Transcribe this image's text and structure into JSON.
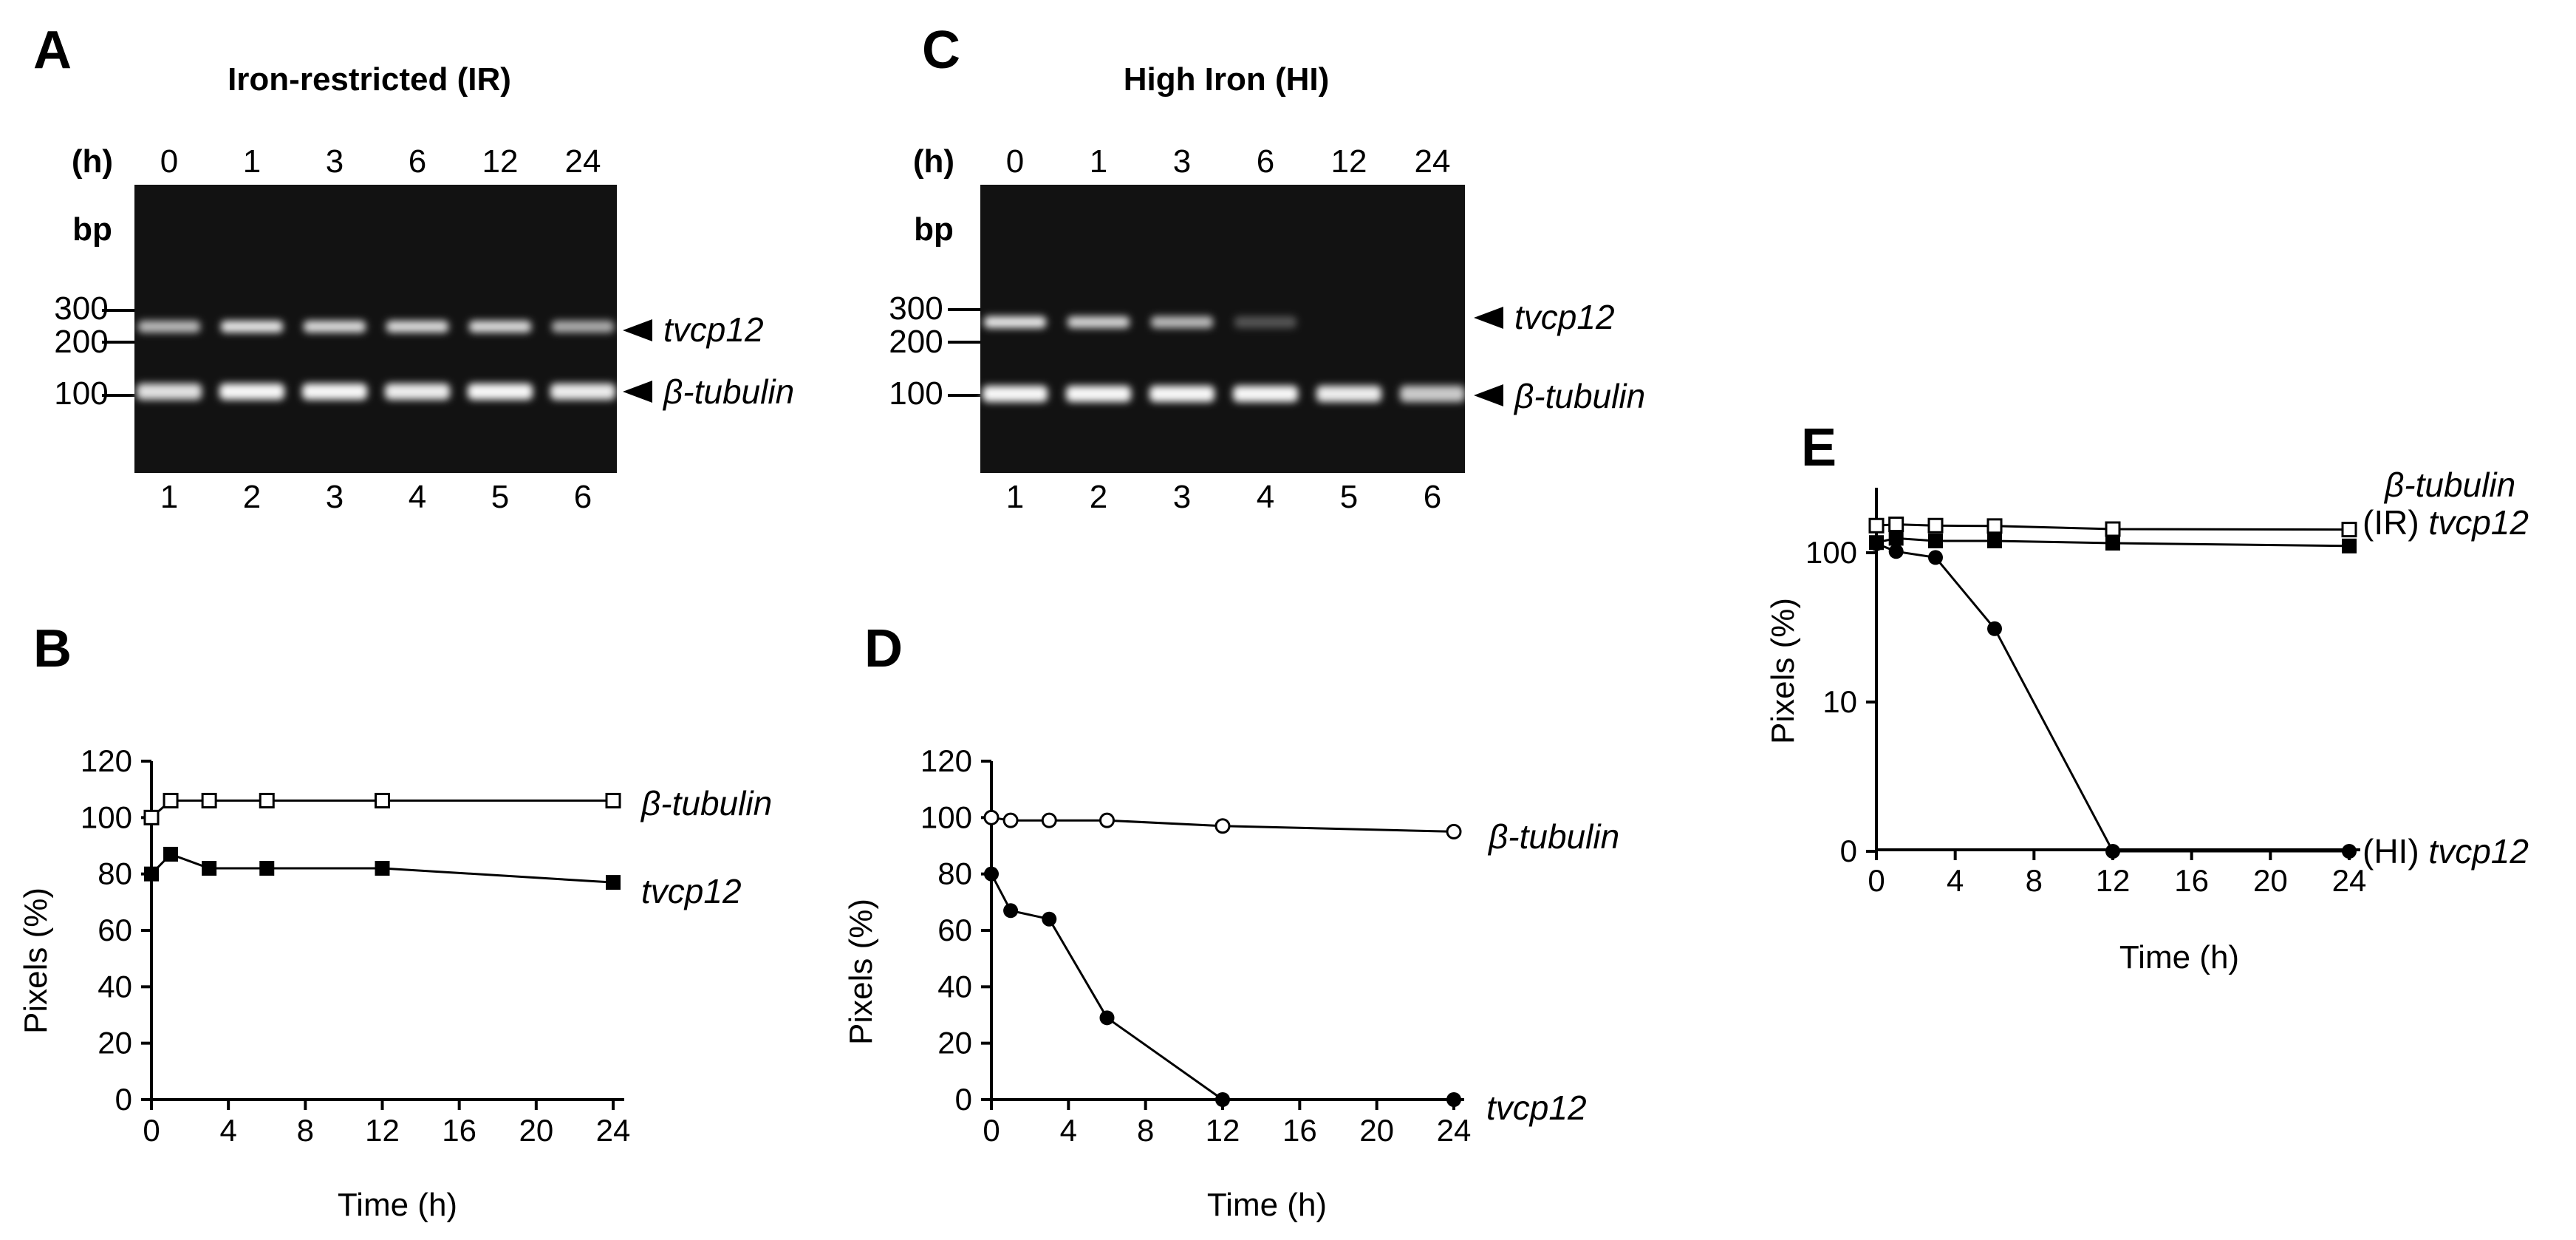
{
  "panels": {
    "A": {
      "label": "A",
      "title": "Iron-restricted (IR)"
    },
    "B": {
      "label": "B"
    },
    "C": {
      "label": "C",
      "title": "High Iron (HI)"
    },
    "D": {
      "label": "D"
    },
    "E": {
      "label": "E"
    }
  },
  "gels": [
    {
      "id": "A",
      "hours_label": "(h)",
      "times": [
        "0",
        "1",
        "3",
        "6",
        "12",
        "24"
      ],
      "lanes": [
        "1",
        "2",
        "3",
        "4",
        "5",
        "6"
      ],
      "bp_label": "bp",
      "markers": [
        "300",
        "200",
        "100"
      ],
      "bands": [
        "tvcp12",
        "β-tubulin"
      ],
      "tvcp12_intensity": [
        0.75,
        0.95,
        0.9,
        0.9,
        0.9,
        0.7
      ],
      "tubulin_intensity": [
        0.9,
        1.0,
        1.0,
        0.95,
        1.0,
        0.95
      ]
    },
    {
      "id": "C",
      "hours_label": "(h)",
      "times": [
        "0",
        "1",
        "3",
        "6",
        "12",
        "24"
      ],
      "lanes": [
        "1",
        "2",
        "3",
        "4",
        "5",
        "6"
      ],
      "bp_label": "bp",
      "markers": [
        "300",
        "200",
        "100"
      ],
      "bands": [
        "tvcp12",
        "β-tubulin"
      ],
      "tvcp12_intensity": [
        0.95,
        0.85,
        0.75,
        0.3,
        0.0,
        0.0
      ],
      "tubulin_intensity": [
        1.0,
        1.0,
        1.0,
        1.0,
        0.95,
        0.8
      ]
    }
  ],
  "axis_text": {
    "B": {
      "xlabel": "Time (h)",
      "ylabel": "Pixels (%)"
    },
    "D": {
      "xlabel": "Time (h)",
      "ylabel": "Pixels (%)"
    },
    "E": {
      "xlabel": "Time (h)",
      "ylabel": "Pixels (%)"
    }
  },
  "series_labels": {
    "B": {
      "tub": "β-tubulin",
      "tv": "tvcp12"
    },
    "D": {
      "tub": "β-tubulin",
      "tv": "tvcp12"
    },
    "E": {
      "tub": "β-tubulin",
      "ir_prefix": "(IR) ",
      "ir": "tvcp12",
      "hi_prefix": "(HI) ",
      "hi": "tvcp12"
    }
  },
  "chart_data": [
    {
      "id": "B",
      "type": "line",
      "xlabel": "Time (h)",
      "ylabel": "Pixels (%)",
      "xlim": [
        0,
        24
      ],
      "ylim": [
        0,
        120
      ],
      "xticks": [
        0,
        4,
        8,
        12,
        16,
        20,
        24
      ],
      "yticks": [
        0,
        20,
        40,
        60,
        80,
        100,
        120
      ],
      "series": [
        {
          "name": "β-tubulin",
          "marker": "open-square",
          "x": [
            0,
            1,
            3,
            6,
            12,
            24
          ],
          "y": [
            100,
            106,
            106,
            106,
            106,
            106
          ]
        },
        {
          "name": "tvcp12",
          "marker": "filled-square",
          "x": [
            0,
            1,
            3,
            6,
            12,
            24
          ],
          "y": [
            80,
            87,
            82,
            82,
            82,
            77
          ]
        }
      ]
    },
    {
      "id": "D",
      "type": "line",
      "xlabel": "Time (h)",
      "ylabel": "Pixels (%)",
      "xlim": [
        0,
        24
      ],
      "ylim": [
        0,
        120
      ],
      "xticks": [
        0,
        4,
        8,
        12,
        16,
        20,
        24
      ],
      "yticks": [
        0,
        20,
        40,
        60,
        80,
        100,
        120
      ],
      "series": [
        {
          "name": "β-tubulin",
          "marker": "open-circle",
          "x": [
            0,
            1,
            3,
            6,
            12,
            24
          ],
          "y": [
            100,
            99,
            99,
            99,
            97,
            95
          ]
        },
        {
          "name": "tvcp12",
          "marker": "filled-circle",
          "x": [
            0,
            1,
            3,
            6,
            12,
            24
          ],
          "y": [
            80,
            67,
            64,
            29,
            0,
            0
          ]
        }
      ]
    },
    {
      "id": "E",
      "type": "line",
      "xlabel": "Time (h)",
      "ylabel": "Pixels (%)",
      "xlim": [
        0,
        24
      ],
      "yscale": "log",
      "ytick_labels": [
        "0",
        "10",
        "100"
      ],
      "xticks": [
        0,
        4,
        8,
        12,
        16,
        20,
        24
      ],
      "series": [
        {
          "name": "β-tubulin",
          "marker": "open-square",
          "x": [
            0,
            1,
            3,
            6,
            12,
            24
          ],
          "y": [
            152,
            155,
            152,
            151,
            144,
            143
          ]
        },
        {
          "name": "(IR) tvcp12",
          "marker": "filled-square",
          "x": [
            0,
            1,
            3,
            6,
            12,
            24
          ],
          "y": [
            117,
            125,
            120,
            120,
            116,
            111
          ]
        },
        {
          "name": "(HI) tvcp12",
          "marker": "filled-circle",
          "x": [
            0,
            1,
            3,
            6,
            12,
            24
          ],
          "y": [
            115,
            102,
            93,
            31,
            1,
            1
          ]
        }
      ]
    }
  ]
}
